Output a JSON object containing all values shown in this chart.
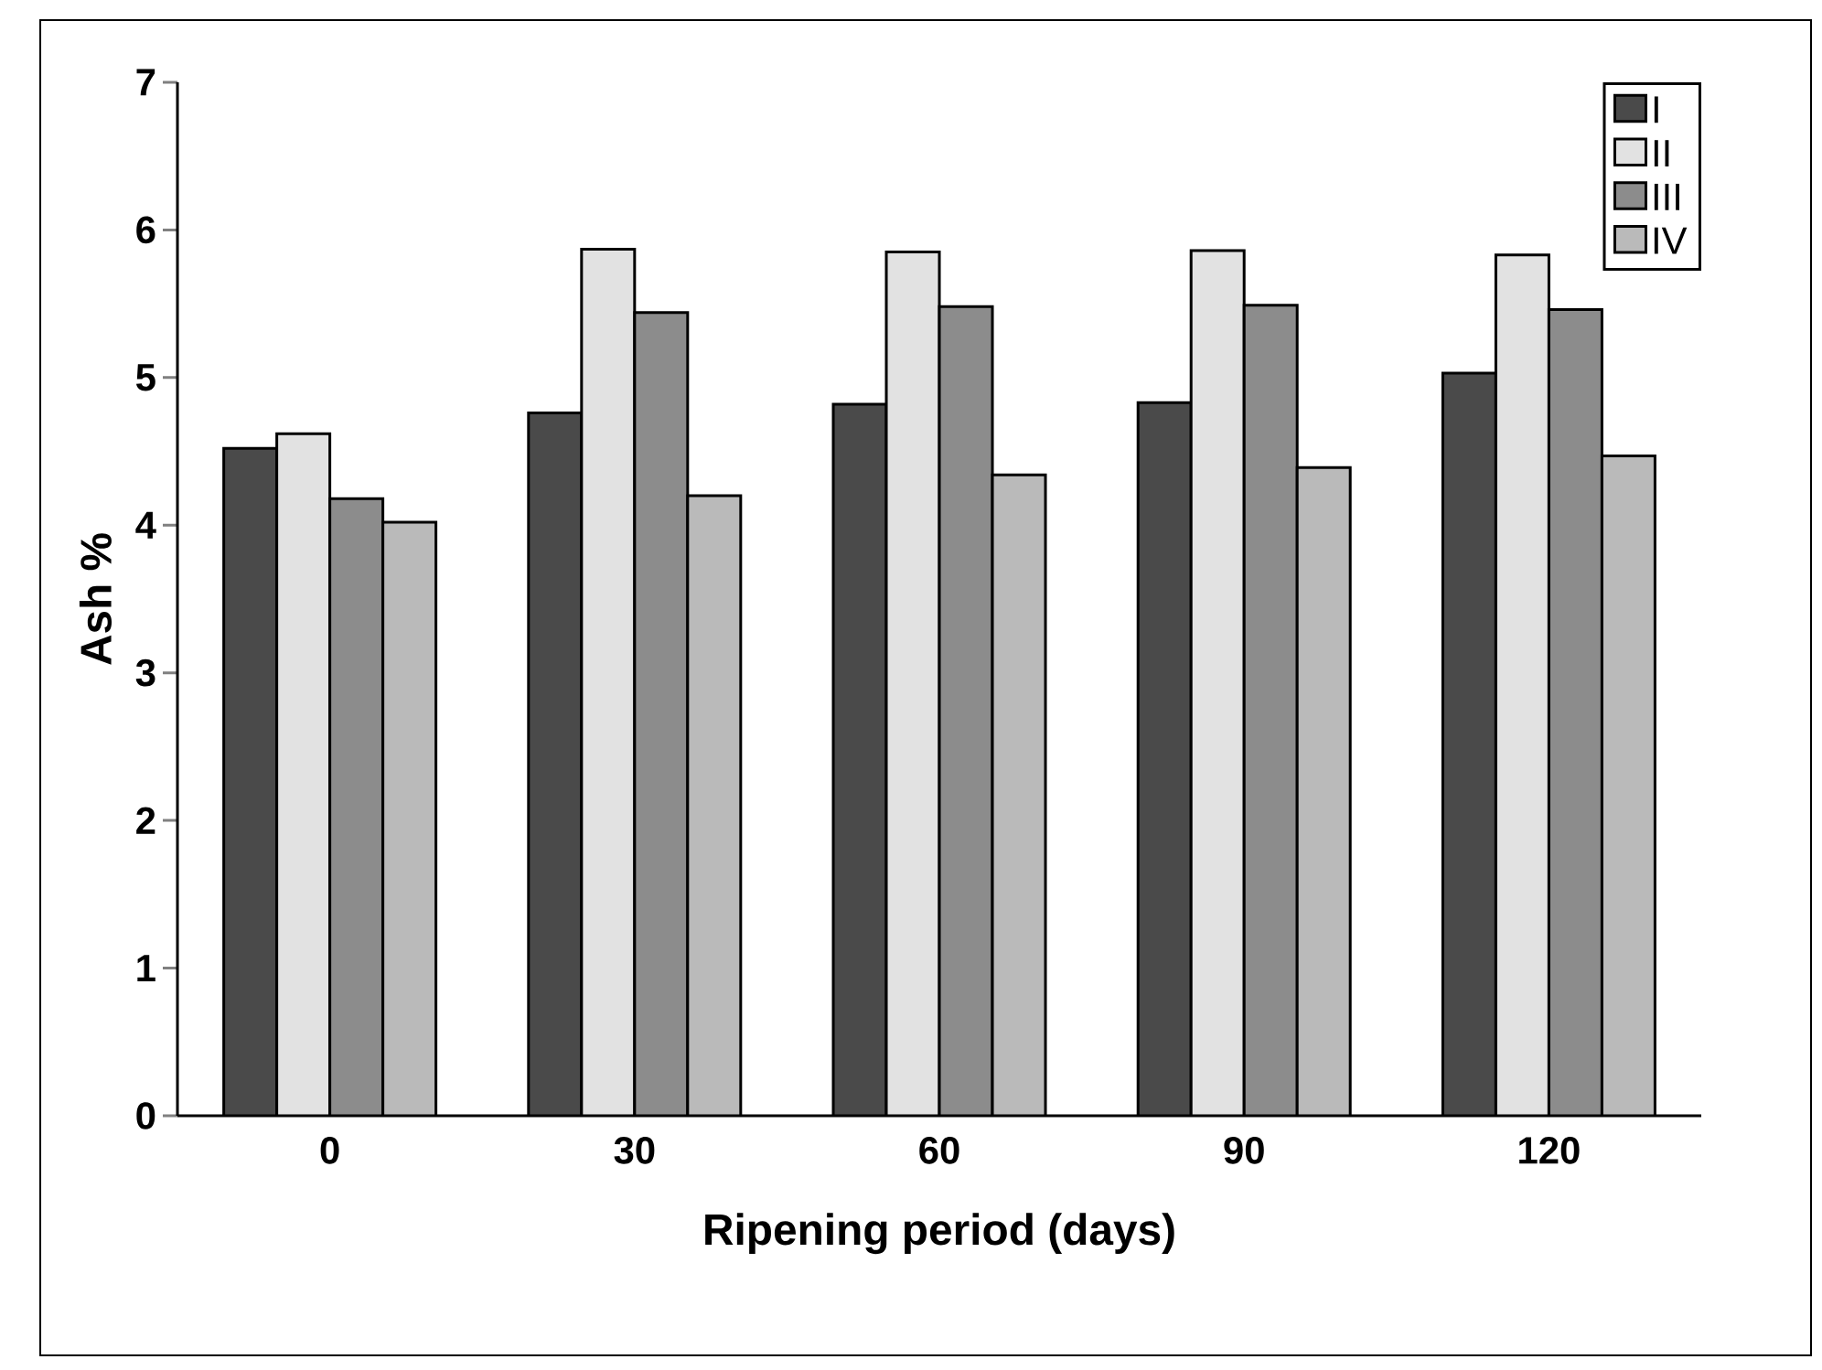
{
  "chart_data": {
    "type": "bar",
    "xlabel": "Ripening period (days)",
    "ylabel": "Ash %",
    "categories": [
      "0",
      "30",
      "60",
      "90",
      "120"
    ],
    "series": [
      {
        "name": "I",
        "color": "#4a4a4a",
        "values": [
          4.52,
          4.76,
          4.82,
          4.83,
          5.03
        ]
      },
      {
        "name": "II",
        "color": "#e2e2e2",
        "values": [
          4.62,
          5.87,
          5.85,
          5.86,
          5.83
        ]
      },
      {
        "name": "III",
        "color": "#8c8c8c",
        "values": [
          4.18,
          5.44,
          5.48,
          5.49,
          5.46
        ]
      },
      {
        "name": "IV",
        "color": "#bababa",
        "values": [
          4.02,
          4.2,
          4.34,
          4.39,
          4.47
        ]
      }
    ],
    "ylim": [
      0,
      7
    ],
    "yticks": [
      0,
      1,
      2,
      3,
      4,
      5,
      6,
      7
    ],
    "legend": "top right"
  }
}
